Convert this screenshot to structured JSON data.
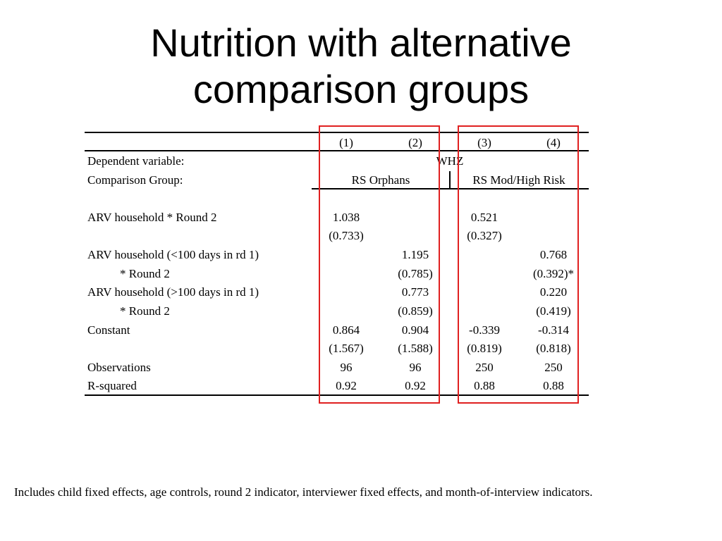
{
  "title": {
    "line1": "Nutrition with alternative",
    "line2": "comparison groups"
  },
  "table": {
    "columns": [
      "(1)",
      "(2)",
      "(3)",
      "(4)"
    ],
    "dependent_variable_label": "Dependent variable:",
    "dependent_variable_value": "WHZ",
    "comparison_group_label": "Comparison Group:",
    "comparison_groups": [
      "RS Orphans",
      "RS Mod/High Risk"
    ],
    "rows": {
      "arv_round2": {
        "label": "ARV household * Round 2",
        "coef": [
          "1.038",
          "",
          "0.521",
          ""
        ],
        "se": [
          "(0.733)",
          "",
          "(0.327)",
          ""
        ]
      },
      "arv_lt100": {
        "label": "ARV household (<100 days in rd 1)",
        "sublabel": "* Round 2",
        "coef": [
          "",
          "1.195",
          "",
          "0.768"
        ],
        "se": [
          "",
          "(0.785)",
          "",
          "(0.392)*"
        ]
      },
      "arv_gt100": {
        "label": "ARV household (>100 days in rd 1)",
        "sublabel": "* Round 2",
        "coef": [
          "",
          "0.773",
          "",
          "0.220"
        ],
        "se": [
          "",
          "(0.859)",
          "",
          "(0.419)"
        ]
      },
      "constant": {
        "label": "Constant",
        "coef": [
          "0.864",
          "0.904",
          "-0.339",
          "-0.314"
        ],
        "se": [
          "(1.567)",
          "(1.588)",
          "(0.819)",
          "(0.818)"
        ]
      },
      "observations": {
        "label": "Observations",
        "values": [
          "96",
          "96",
          "250",
          "250"
        ]
      },
      "rsquared": {
        "label": "R-squared",
        "values": [
          "0.92",
          "0.92",
          "0.88",
          "0.88"
        ]
      }
    }
  },
  "highlight_color": "#e02020",
  "footnote": "Includes child fixed effects, age controls, round 2 indicator, interviewer fixed effects, and month-of-interview indicators."
}
